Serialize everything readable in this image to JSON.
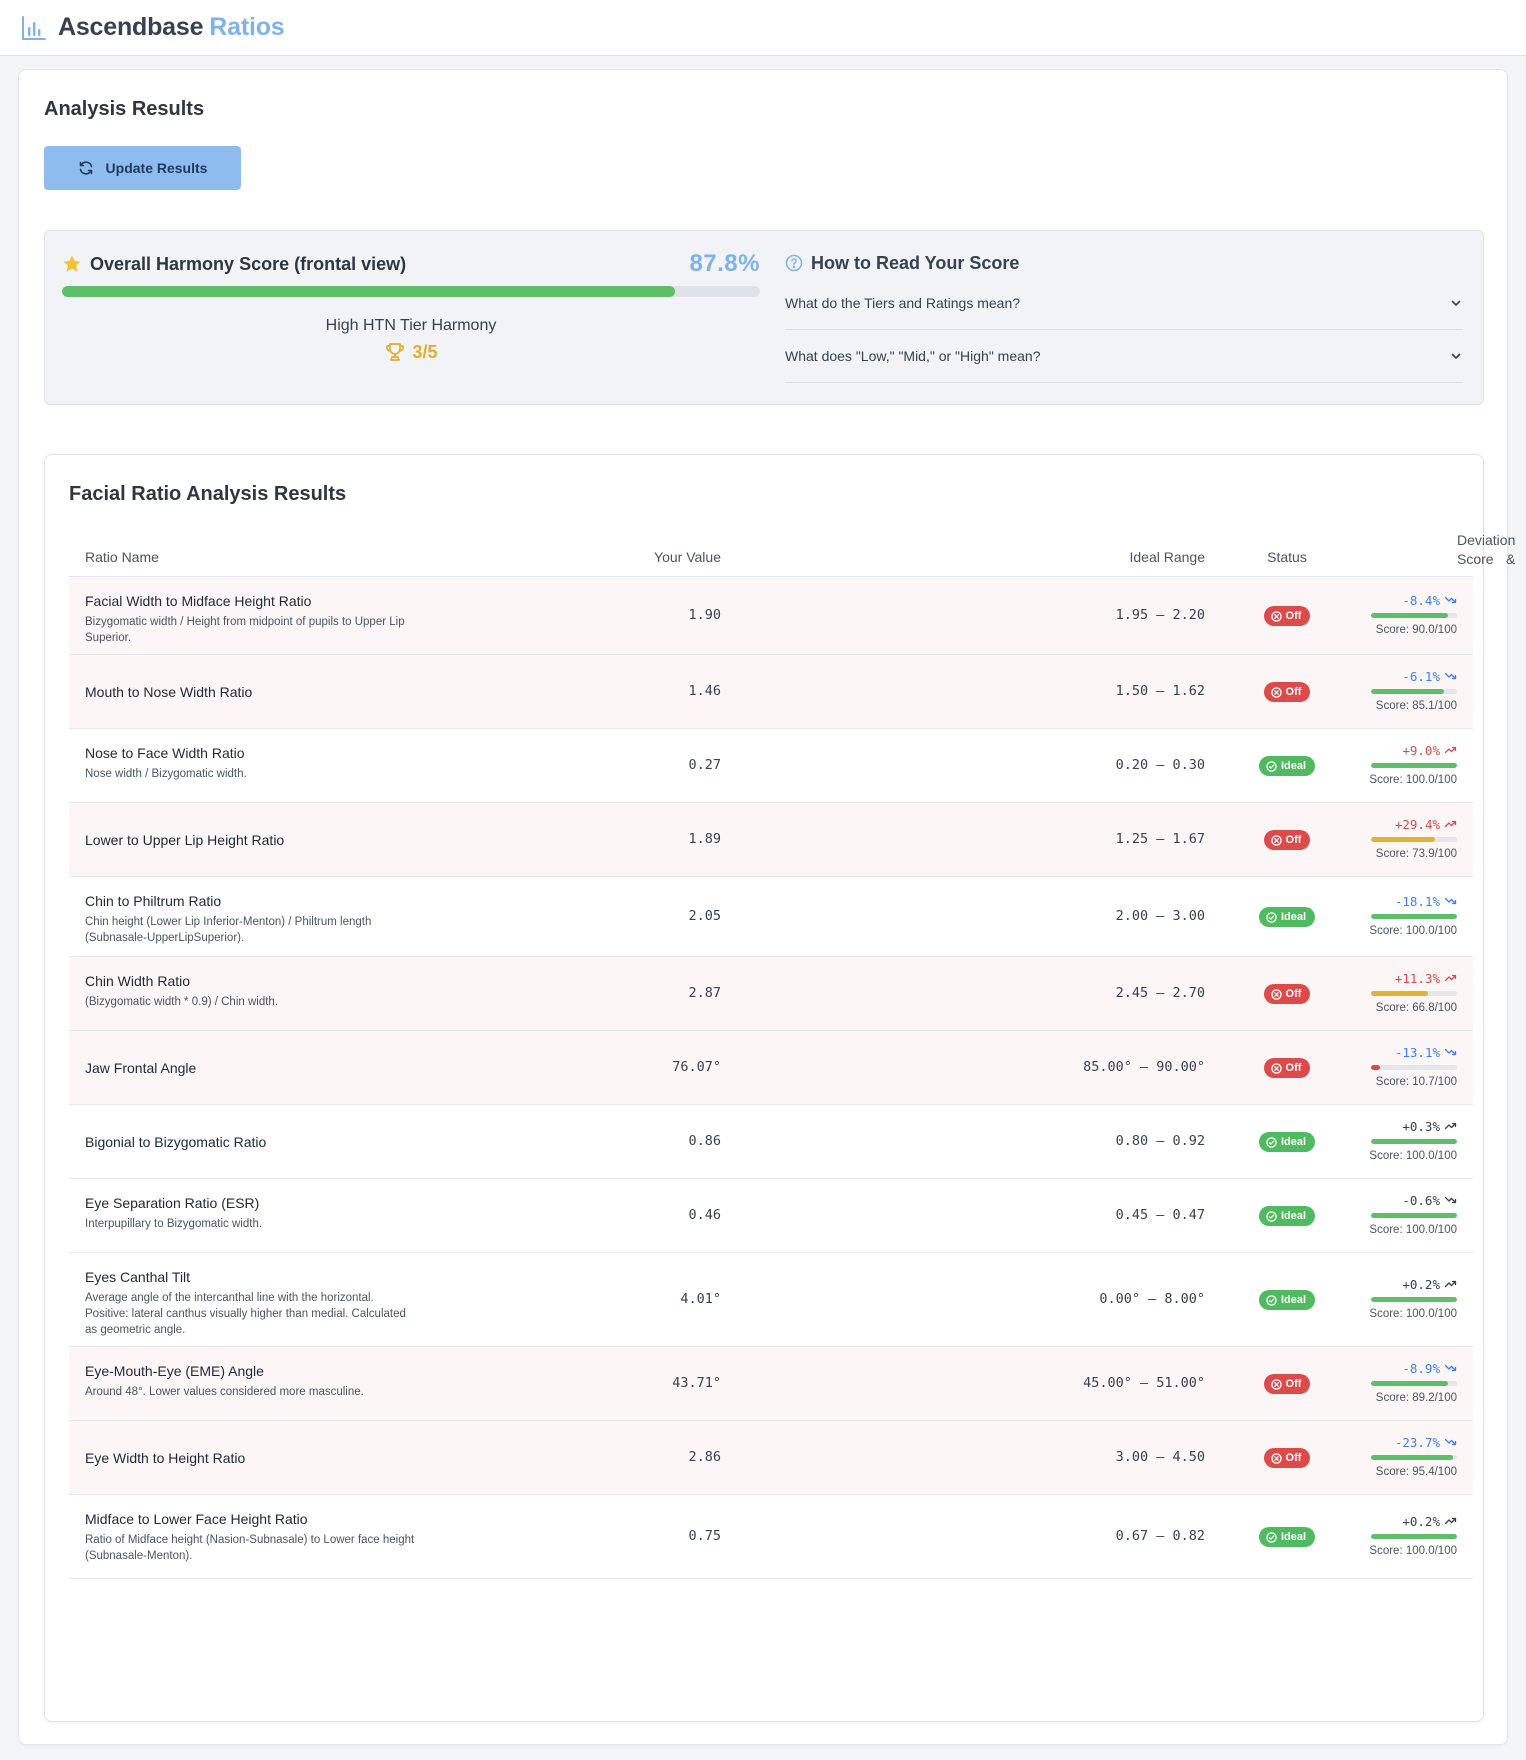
{
  "header": {
    "brand": "Ascendbase",
    "brand_accent": "Ratios",
    "logo_icon": "bar-chart-icon",
    "accent_color": "#7eb3e9"
  },
  "page": {
    "title": "Analysis Results",
    "update_button": "Update Results"
  },
  "score": {
    "title": "Overall Harmony Score (frontal view)",
    "percent_label": "87.8%",
    "percent_value": 0.878,
    "tier_text": "High HTN Tier Harmony",
    "rating": "3/5",
    "bar_color": "#5dbf6a"
  },
  "guide": {
    "title": "How to Read Your Score",
    "faqs": [
      "What do the Tiers and Ratings mean?",
      "What does \"Low,\" \"Mid,\" or \"High\" mean?"
    ]
  },
  "table": {
    "title": "Facial Ratio Analysis Results",
    "columns": {
      "name": "Ratio Name",
      "value": "Your Value",
      "range": "Ideal Range",
      "status": "Status",
      "deviation_line1": "Deviation &",
      "deviation_line2": "Score"
    },
    "rows": [
      {
        "name": "Facial Width to Midface Height Ratio",
        "desc": "Bizygomatic width / Height from midpoint of pupils to Upper Lip Superior.",
        "value": "1.90",
        "range": "1.95 – 2.20",
        "status": "Off",
        "deviation": "-8.4%",
        "trend": "down",
        "score_label": "Score: 90.0/100",
        "score": 90.0
      },
      {
        "name": "Mouth to Nose Width Ratio",
        "desc": "",
        "value": "1.46",
        "range": "1.50 – 1.62",
        "status": "Off",
        "deviation": "-6.1%",
        "trend": "down",
        "score_label": "Score: 85.1/100",
        "score": 85.1
      },
      {
        "name": "Nose to Face Width Ratio",
        "desc": "Nose width / Bizygomatic width.",
        "value": "0.27",
        "range": "0.20 – 0.30",
        "status": "Ideal",
        "deviation": "+9.0%",
        "trend": "up",
        "score_label": "Score: 100.0/100",
        "score": 100.0
      },
      {
        "name": "Lower to Upper Lip Height Ratio",
        "desc": "",
        "value": "1.89",
        "range": "1.25 – 1.67",
        "status": "Off",
        "deviation": "+29.4%",
        "trend": "up",
        "score_label": "Score: 73.9/100",
        "score": 73.9
      },
      {
        "name": "Chin to Philtrum Ratio",
        "desc": "Chin height (Lower Lip Inferior-Menton) / Philtrum length (Subnasale-UpperLipSuperior).",
        "value": "2.05",
        "range": "2.00 – 3.00",
        "status": "Ideal",
        "deviation": "-18.1%",
        "trend": "down",
        "score_label": "Score: 100.0/100",
        "score": 100.0
      },
      {
        "name": "Chin Width Ratio",
        "desc": "(Bizygomatic width * 0.9) / Chin width.",
        "value": "2.87",
        "range": "2.45 – 2.70",
        "status": "Off",
        "deviation": "+11.3%",
        "trend": "up",
        "score_label": "Score: 66.8/100",
        "score": 66.8
      },
      {
        "name": "Jaw Frontal Angle",
        "desc": "",
        "value": "76.07°",
        "range": "85.00° – 90.00°",
        "status": "Off",
        "deviation": "-13.1%",
        "trend": "down",
        "score_label": "Score: 10.7/100",
        "score": 10.7
      },
      {
        "name": "Bigonial to Bizygomatic Ratio",
        "desc": "",
        "value": "0.86",
        "range": "0.80 – 0.92",
        "status": "Ideal",
        "deviation": "+0.3%",
        "trend": "up",
        "score_label": "Score: 100.0/100",
        "score": 100.0
      },
      {
        "name": "Eye Separation Ratio (ESR)",
        "desc": "Interpupillary to Bizygomatic width.",
        "value": "0.46",
        "range": "0.45 – 0.47",
        "status": "Ideal",
        "deviation": "-0.6%",
        "trend": "down",
        "score_label": "Score: 100.0/100",
        "score": 100.0
      },
      {
        "name": "Eyes Canthal Tilt",
        "desc": "Average angle of the intercanthal line with the horizontal. Positive: lateral canthus visually higher than medial. Calculated as geometric angle.",
        "value": "4.01°",
        "range": "0.00° – 8.00°",
        "status": "Ideal",
        "deviation": "+0.2%",
        "trend": "up",
        "score_label": "Score: 100.0/100",
        "score": 100.0
      },
      {
        "name": "Eye-Mouth-Eye (EME) Angle",
        "desc": "Around 48°. Lower values considered more masculine.",
        "value": "43.71°",
        "range": "45.00° – 51.00°",
        "status": "Off",
        "deviation": "-8.9%",
        "trend": "down",
        "score_label": "Score: 89.2/100",
        "score": 89.2
      },
      {
        "name": "Eye Width to Height Ratio",
        "desc": "",
        "value": "2.86",
        "range": "3.00 – 4.50",
        "status": "Off",
        "deviation": "-23.7%",
        "trend": "down",
        "score_label": "Score: 95.4/100",
        "score": 95.4
      },
      {
        "name": "Midface to Lower Face Height Ratio",
        "desc": "Ratio of Midface height (Nasion-Subnasale) to Lower face height (Subnasale-Menton).",
        "value": "0.75",
        "range": "0.67 – 0.82",
        "status": "Ideal",
        "deviation": "+0.2%",
        "trend": "up",
        "score_label": "Score: 100.0/100",
        "score": 100.0
      }
    ]
  },
  "colors": {
    "off": "#dc4a4a",
    "ideal": "#4fba5f",
    "dev_negative": "#3b82f6",
    "dev_positive": "#dc4a4a",
    "dev_neutral": "#374151",
    "bar_green": "#5dbf6a",
    "bar_yellow": "#e0b23a",
    "bar_red": "#dc4a4a"
  }
}
